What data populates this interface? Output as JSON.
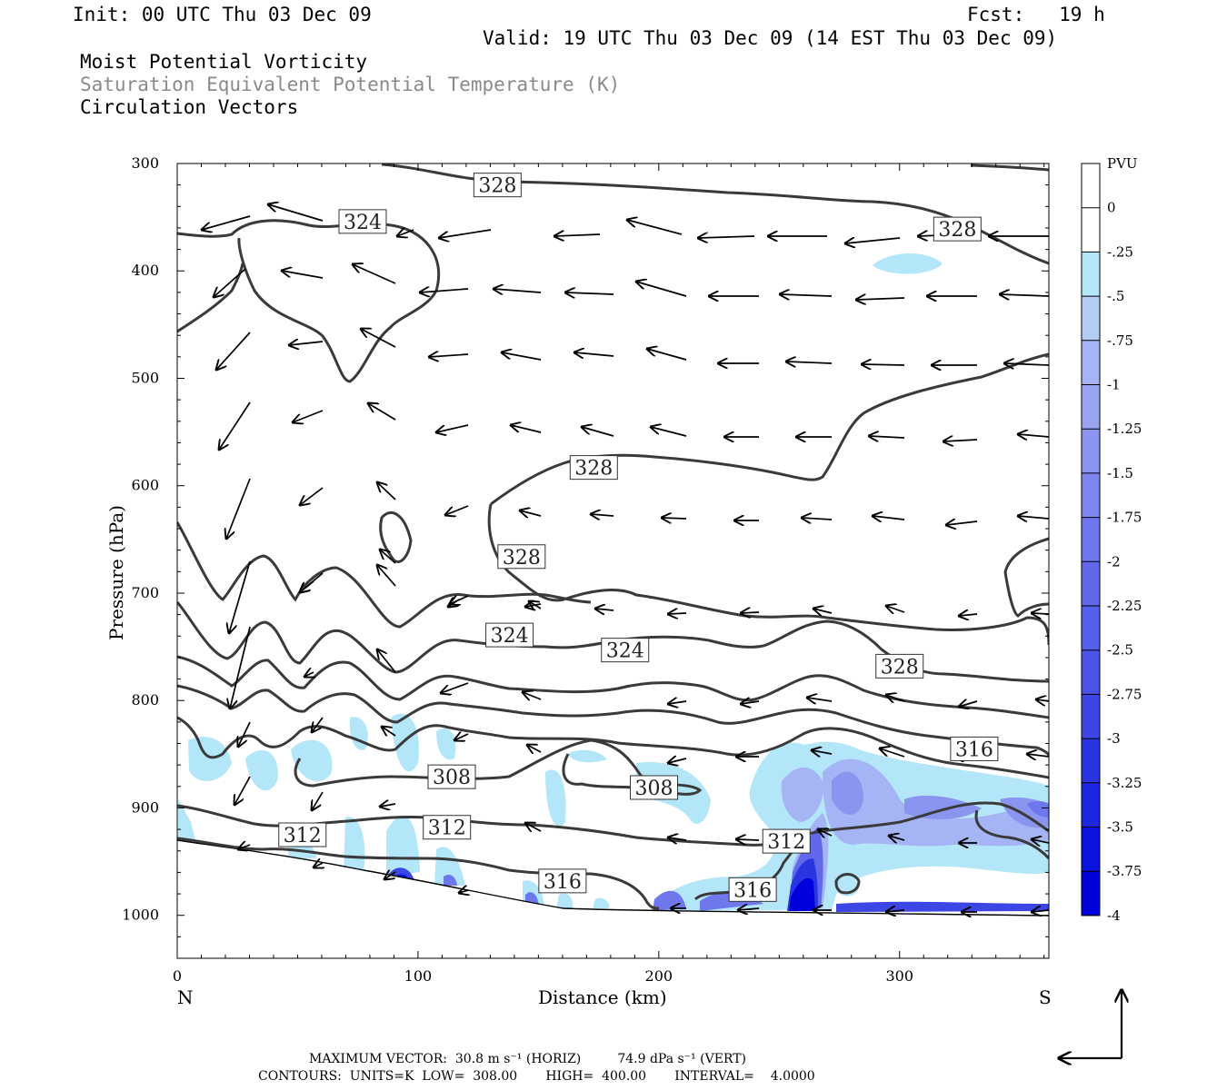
{
  "header": {
    "init": "Init: 00 UTC Thu 03 Dec 09",
    "fcst": "Fcst:   19 h",
    "valid": "Valid: 19 UTC Thu 03 Dec 09 (14 EST Thu 03 Dec 09)",
    "field1": "Moist Potential Vorticity",
    "field2": "Saturation Equivalent Potential Temperature (K)",
    "field3": "Circulation Vectors"
  },
  "footer": {
    "max_vector": "MAXIMUM VECTOR:  30.8 m s⁻¹ (HORIZ)         74.9 dPa s⁻¹ (VERT)",
    "contours": "CONTOURS:  UNITS=K  LOW=  308.00       HIGH=  400.00       INTERVAL=    4.0000"
  },
  "colors": {
    "pv_shades": [
      "#ffffff",
      "#ffffff",
      "#b4e6fa",
      "#b4cdf5",
      "#a5b4f5",
      "#9aa5f2",
      "#8a95f0",
      "#7d87ee",
      "#6e78ec",
      "#6169ea",
      "#5560e8",
      "#4a55e6",
      "#3c46e4",
      "#2a35e2",
      "#1c28e0",
      "#0a14dc",
      "#0000dc"
    ],
    "contour": "#3a3a3a"
  },
  "chart_data": {
    "type": "cross-section",
    "xlabel": "Distance (km)",
    "ylabel": "Pressure (hPa)",
    "xlim": [
      0,
      362
    ],
    "ylim": [
      1040,
      300
    ],
    "xticks": [
      0,
      100,
      200,
      300
    ],
    "yticks": [
      300,
      400,
      500,
      600,
      700,
      800,
      900,
      1000
    ],
    "left_end_label": "N",
    "right_end_label": "S",
    "colorbar": {
      "unit": "PVU",
      "levels": [
        "0",
        "-.25",
        "-.5",
        "-.75",
        "-1",
        "-1.25",
        "-1.5",
        "-1.75",
        "-2",
        "-2.25",
        "-2.5",
        "-2.75",
        "-3",
        "-3.25",
        "-3.5",
        "-3.75",
        "-4"
      ]
    },
    "contour_labels": [
      {
        "text": "328",
        "x": 133,
        "y": 320
      },
      {
        "text": "324",
        "x": 77,
        "y": 354
      },
      {
        "text": "328",
        "x": 324,
        "y": 361
      },
      {
        "text": "328",
        "x": 173,
        "y": 583
      },
      {
        "text": "328",
        "x": 143,
        "y": 666
      },
      {
        "text": "324",
        "x": 138,
        "y": 739
      },
      {
        "text": "324",
        "x": 186,
        "y": 753
      },
      {
        "text": "328",
        "x": 300,
        "y": 768
      },
      {
        "text": "316",
        "x": 331,
        "y": 845
      },
      {
        "text": "308",
        "x": 114,
        "y": 871
      },
      {
        "text": "308",
        "x": 198,
        "y": 881
      },
      {
        "text": "312",
        "x": 52,
        "y": 925
      },
      {
        "text": "312",
        "x": 112,
        "y": 918
      },
      {
        "text": "312",
        "x": 253,
        "y": 931
      },
      {
        "text": "316",
        "x": 160,
        "y": 968
      },
      {
        "text": "316",
        "x": 239,
        "y": 976
      }
    ]
  }
}
